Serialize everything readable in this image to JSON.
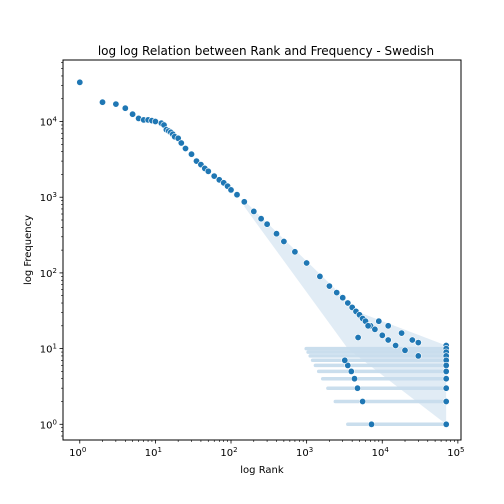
{
  "chart_data": {
    "type": "scatter",
    "title": "log log Relation between Rank and Frequency - Swedish",
    "xlabel": "log Rank",
    "ylabel": "log Frequency",
    "x_scale": "log",
    "y_scale": "log",
    "xlim": [
      0.6,
      110000
    ],
    "ylim": [
      0.62,
      65000
    ],
    "x_ticks": [
      {
        "base": "10",
        "exp": "0",
        "value": 1
      },
      {
        "base": "10",
        "exp": "1",
        "value": 10
      },
      {
        "base": "10",
        "exp": "2",
        "value": 100
      },
      {
        "base": "10",
        "exp": "3",
        "value": 1000
      },
      {
        "base": "10",
        "exp": "4",
        "value": 10000
      },
      {
        "base": "10",
        "exp": "5",
        "value": 100000
      }
    ],
    "y_ticks": [
      {
        "base": "10",
        "exp": "0",
        "value": 1
      },
      {
        "base": "10",
        "exp": "1",
        "value": 10
      },
      {
        "base": "10",
        "exp": "2",
        "value": 100
      },
      {
        "base": "10",
        "exp": "3",
        "value": 1000
      },
      {
        "base": "10",
        "exp": "4",
        "value": 10000
      }
    ],
    "grid": false,
    "marker_color": "#1f77b4",
    "x": [
      1,
      2,
      3,
      4,
      5,
      6,
      7,
      8,
      9,
      10,
      12,
      13,
      14,
      15,
      16,
      17,
      18,
      20,
      22,
      25,
      30,
      35,
      40,
      45,
      50,
      60,
      70,
      80,
      90,
      100,
      120,
      150,
      200,
      250,
      300,
      400,
      500,
      700,
      1000,
      1500,
      2000,
      2500,
      3000,
      3500,
      4000,
      4500,
      5000,
      5500,
      6000,
      7000,
      8000,
      10000,
      12000,
      15000,
      20000,
      30000,
      70000,
      70000,
      70000,
      70000,
      70000,
      70000,
      70000,
      70000,
      70000,
      70000,
      70000,
      7200,
      5500,
      4700,
      4300,
      3900,
      3500,
      3200,
      4800,
      6500,
      9000,
      12000,
      18000,
      25000,
      30000
    ],
    "y": [
      33000,
      18000,
      17000,
      15000,
      12500,
      11000,
      10500,
      10500,
      10300,
      10000,
      9500,
      9000,
      7800,
      7500,
      7200,
      6800,
      6300,
      6000,
      5200,
      4400,
      3700,
      3000,
      2700,
      2400,
      2200,
      1900,
      1700,
      1550,
      1400,
      1250,
      1080,
      870,
      650,
      520,
      440,
      330,
      260,
      190,
      135,
      90,
      67,
      55,
      47,
      40,
      35,
      31,
      28,
      25,
      23,
      20,
      18,
      15,
      13,
      11,
      9.5,
      8,
      11,
      10,
      9,
      8,
      7,
      6,
      5,
      4,
      3,
      2,
      1,
      1,
      2,
      3,
      4,
      5,
      6,
      7,
      14,
      20,
      23,
      20,
      16,
      13,
      12
    ]
  }
}
